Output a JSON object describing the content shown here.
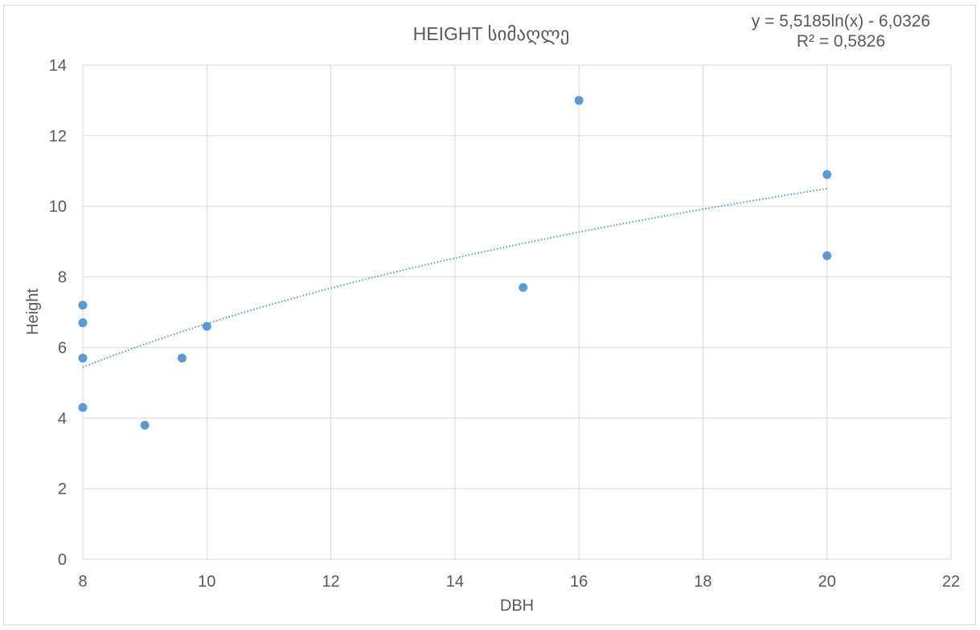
{
  "chart_data": {
    "type": "scatter",
    "title": "HEIGHT სიმაღლე",
    "xlabel": "DBH",
    "ylabel": "Height",
    "xlim": [
      8,
      22
    ],
    "ylim": [
      0,
      14
    ],
    "xticks": [
      8,
      10,
      12,
      14,
      16,
      18,
      20,
      22
    ],
    "yticks": [
      0,
      2,
      4,
      6,
      8,
      10,
      12,
      14
    ],
    "xtick_labels": [
      "8",
      "10",
      "12",
      "14",
      "16",
      "18",
      "20",
      "22"
    ],
    "ytick_labels": [
      "0",
      "2",
      "4",
      "6",
      "8",
      "10",
      "12",
      "14"
    ],
    "grid": true,
    "points": [
      {
        "x": 8,
        "y": 7.2
      },
      {
        "x": 8,
        "y": 6.7
      },
      {
        "x": 8,
        "y": 5.7
      },
      {
        "x": 8,
        "y": 4.3
      },
      {
        "x": 9,
        "y": 3.8
      },
      {
        "x": 9.6,
        "y": 5.7
      },
      {
        "x": 10,
        "y": 6.6
      },
      {
        "x": 15.1,
        "y": 7.7
      },
      {
        "x": 16,
        "y": 13.0
      },
      {
        "x": 20,
        "y": 10.9
      },
      {
        "x": 20,
        "y": 8.6
      }
    ],
    "trendline": {
      "type": "logarithmic",
      "a": 5.5185,
      "b": -6.0326,
      "x_from": 8,
      "x_to": 20,
      "equation": "y = 5,5185ln(x) - 6,0326",
      "r_squared": "R² = 0,5826"
    },
    "colors": {
      "marker": "#5b9bd5",
      "trendline": "#5b9bd5",
      "grid": "#d9d9d9",
      "text": "#595959"
    }
  }
}
